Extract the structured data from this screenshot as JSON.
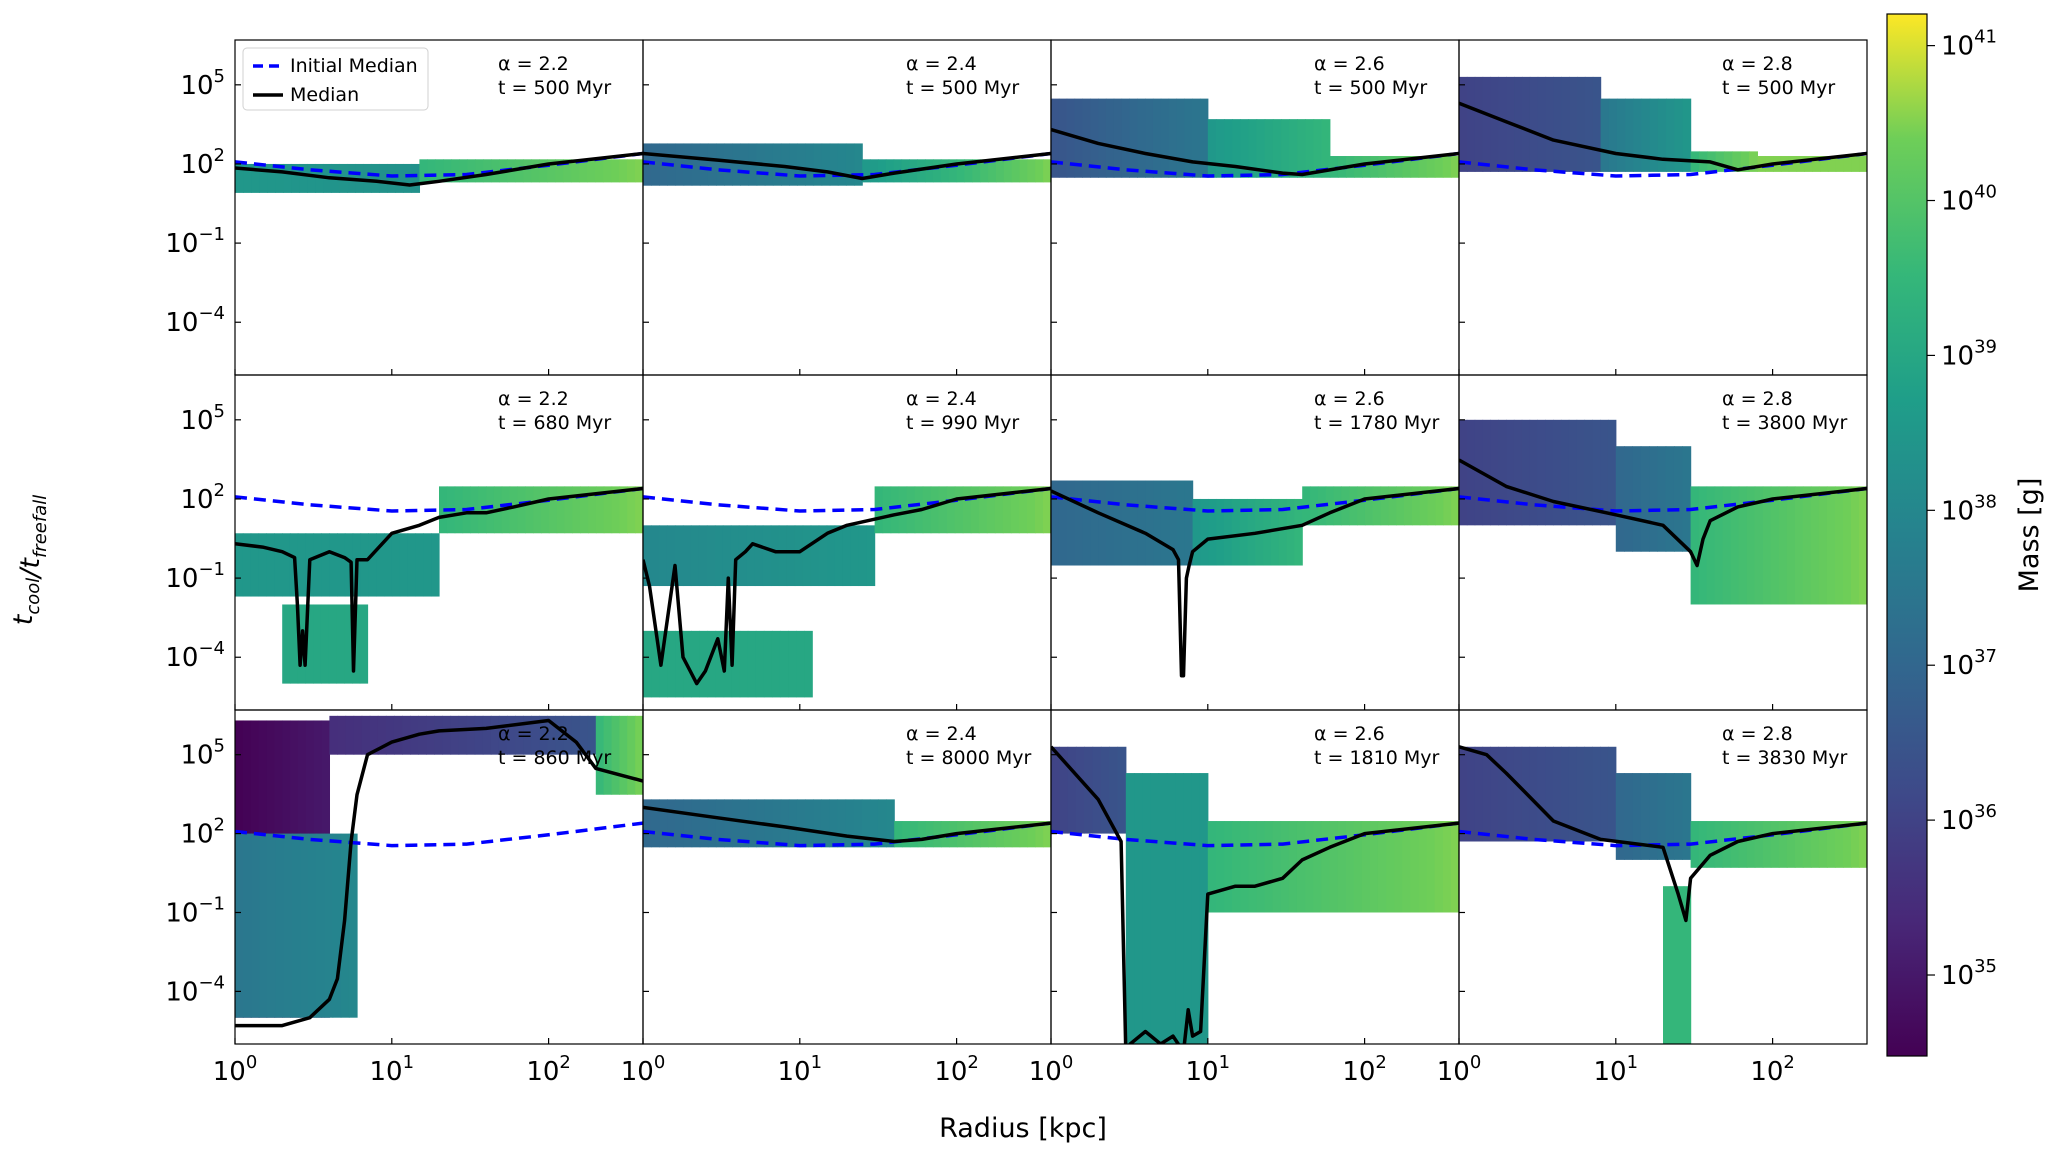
{
  "chart_data": {
    "type": "heatmap",
    "layout": {
      "rows": 3,
      "cols": 4
    },
    "xlabel": "Radius [kpc]",
    "ylabel": "t_cool/t_freefall",
    "xscale": "log",
    "yscale": "log",
    "xlim": [
      1,
      400
    ],
    "ylim": [
      1e-06,
      5000000
    ],
    "xticks": [
      1,
      10,
      100
    ],
    "xtick_labels": [
      "10^0",
      "10^1",
      "10^2"
    ],
    "xtick_labels_last_col": [
      "10^0",
      "10^1",
      "10^2"
    ],
    "yticks": [
      0.0001,
      0.1,
      100,
      100000
    ],
    "ytick_labels": [
      "10^−4",
      "10^−1",
      "10^2",
      "10^5"
    ],
    "legend": {
      "position": "top-left",
      "panel": 0,
      "entries": [
        {
          "label": "Initial Median",
          "color": "#0000ff",
          "style": "dashed"
        },
        {
          "label": "Median",
          "color": "#000000",
          "style": "solid"
        }
      ]
    },
    "colorbar": {
      "label": "Mass [g]",
      "scale": "log",
      "range": [
        3e+34,
        1.6e+41
      ],
      "ticks": [
        1e+35,
        1e+36,
        1e+37,
        1e+38,
        1e+39,
        1e+40,
        1e+41
      ],
      "tick_labels": [
        "10^35",
        "10^36",
        "10^37",
        "10^38",
        "10^39",
        "10^40",
        "10^41"
      ],
      "colormap": "viridis"
    },
    "initial_median": {
      "r": [
        1,
        3,
        10,
        30,
        100,
        400
      ],
      "y": [
        120,
        60,
        35,
        40,
        90,
        250
      ]
    },
    "panels": [
      {
        "alpha_text": "α = 2.2",
        "time_text": "t =  500 Myr",
        "label_pos": "top",
        "median": {
          "r": [
            1,
            2,
            4,
            8,
            13,
            20,
            40,
            100,
            400
          ],
          "y": [
            70,
            50,
            30,
            22,
            16,
            22,
            40,
            100,
            250
          ]
        },
        "mass": [
          {
            "r": [
              1,
              15
            ],
            "ylo": 8,
            "yhi": 100,
            "mlo": 3e+38,
            "mhi": 2e+38
          },
          {
            "r": [
              15,
              400
            ],
            "ylo": 20,
            "yhi": 150,
            "mlo": 3e+39,
            "mhi": 3e+40
          }
        ]
      },
      {
        "alpha_text": "α = 2.4",
        "time_text": "t =  500 Myr",
        "label_pos": "top",
        "median": {
          "r": [
            1,
            3,
            8,
            15,
            25,
            40,
            100,
            400
          ],
          "y": [
            250,
            140,
            80,
            50,
            28,
            45,
            100,
            250
          ]
        },
        "mass": [
          {
            "r": [
              1,
              25
            ],
            "ylo": 15,
            "yhi": 600,
            "mlo": 1e+37,
            "mhi": 1e+38
          },
          {
            "r": [
              25,
              400
            ],
            "ylo": 20,
            "yhi": 150,
            "mlo": 3e+38,
            "mhi": 3e+40
          }
        ]
      },
      {
        "alpha_text": "α = 2.6",
        "time_text": "t =  500 Myr",
        "label_pos": "top",
        "median": {
          "r": [
            1,
            2,
            4,
            8,
            15,
            30,
            40,
            100,
            400
          ],
          "y": [
            2000,
            600,
            250,
            120,
            80,
            45,
            40,
            100,
            250
          ]
        },
        "mass": [
          {
            "r": [
              1,
              10
            ],
            "ylo": 30,
            "yhi": 30000,
            "mlo": 3e+36,
            "mhi": 3e+37
          },
          {
            "r": [
              10,
              60
            ],
            "ylo": 30,
            "yhi": 5000,
            "mlo": 3e+38,
            "mhi": 3e+39
          },
          {
            "r": [
              60,
              400
            ],
            "ylo": 30,
            "yhi": 200,
            "mlo": 3e+39,
            "mhi": 3e+40
          }
        ]
      },
      {
        "alpha_text": "α = 2.8",
        "time_text": "t =  500 Myr",
        "label_pos": "top",
        "median": {
          "r": [
            1,
            2,
            4,
            10,
            20,
            40,
            60,
            100,
            400
          ],
          "y": [
            20000,
            4000,
            800,
            250,
            150,
            120,
            60,
            100,
            250
          ]
        },
        "mass": [
          {
            "r": [
              1,
              8
            ],
            "ylo": 50,
            "yhi": 200000,
            "mlo": 1e+36,
            "mhi": 3e+36
          },
          {
            "r": [
              8,
              30
            ],
            "ylo": 50,
            "yhi": 30000,
            "mlo": 3e+37,
            "mhi": 3e+38
          },
          {
            "r": [
              30,
              80
            ],
            "ylo": 50,
            "yhi": 300,
            "mlo": 3e+39,
            "mhi": 3e+40
          },
          {
            "r": [
              80,
              400
            ],
            "ylo": 50,
            "yhi": 200,
            "mlo": 3e+40,
            "mhi": 3e+40
          }
        ]
      },
      {
        "alpha_text": "α = 2.2",
        "time_text": "t =  680 Myr",
        "label_pos": "top",
        "median": {
          "r": [
            1,
            1.5,
            2,
            2.4,
            2.5,
            2.6,
            2.7,
            2.8,
            3,
            4,
            5,
            5.5,
            5.7,
            6,
            7,
            10,
            15,
            20,
            30,
            40,
            60,
            100,
            400
          ],
          "y": [
            2,
            1.5,
            1,
            0.6,
            0.01,
            5e-05,
            0.001,
            5e-05,
            0.5,
            1,
            0.6,
            0.4,
            3e-05,
            0.5,
            0.5,
            5,
            10,
            20,
            30,
            30,
            50,
            100,
            250
          ]
        },
        "mass": [
          {
            "r": [
              1,
              20
            ],
            "ylo": 0.02,
            "yhi": 5,
            "mlo": 3e+38,
            "mhi": 3e+38
          },
          {
            "r": [
              2,
              7
            ],
            "ylo": 1e-05,
            "yhi": 0.01,
            "mlo": 1e+39,
            "mhi": 1e+39
          },
          {
            "r": [
              20,
              400
            ],
            "ylo": 5,
            "yhi": 300,
            "mlo": 3e+39,
            "mhi": 3e+40
          }
        ]
      },
      {
        "alpha_text": "α = 2.4",
        "time_text": "t =  990 Myr",
        "label_pos": "top",
        "median": {
          "r": [
            1,
            1.1,
            1.3,
            1.6,
            1.8,
            2,
            2.2,
            2.5,
            3,
            3.3,
            3.5,
            3.7,
            3.9,
            4.5,
            5,
            7,
            10,
            15,
            20,
            40,
            60,
            100,
            400
          ],
          "y": [
            0.5,
            0.05,
            5e-05,
            0.3,
            0.0001,
            3e-05,
            1e-05,
            3e-05,
            0.0005,
            3e-05,
            0.1,
            5e-05,
            0.5,
            1,
            2,
            1,
            1,
            5,
            10,
            25,
            40,
            100,
            250
          ]
        },
        "mass": [
          {
            "r": [
              1,
              30
            ],
            "ylo": 0.05,
            "yhi": 10,
            "mlo": 1e+38,
            "mhi": 3e+38
          },
          {
            "r": [
              1,
              12
            ],
            "ylo": 3e-06,
            "yhi": 0.001,
            "mlo": 1e+39,
            "mhi": 1e+39
          },
          {
            "r": [
              30,
              400
            ],
            "ylo": 5,
            "yhi": 300,
            "mlo": 3e+39,
            "mhi": 3e+40
          }
        ]
      },
      {
        "alpha_text": "α = 2.6",
        "time_text": "t = 1780 Myr",
        "label_pos": "top",
        "median": {
          "r": [
            1,
            2,
            4,
            6,
            6.5,
            6.8,
            7,
            7.3,
            7.6,
            8,
            10,
            20,
            40,
            60,
            100,
            400
          ],
          "y": [
            200,
            30,
            5,
            1.2,
            0.5,
            2e-05,
            2e-05,
            0.1,
            0.3,
            1,
            3,
            5,
            10,
            30,
            100,
            250
          ]
        },
        "mass": [
          {
            "r": [
              1,
              8
            ],
            "ylo": 0.3,
            "yhi": 500,
            "mlo": 1e+37,
            "mhi": 3e+37
          },
          {
            "r": [
              8,
              40
            ],
            "ylo": 0.3,
            "yhi": 100,
            "mlo": 3e+38,
            "mhi": 3e+39
          },
          {
            "r": [
              40,
              400
            ],
            "ylo": 10,
            "yhi": 300,
            "mlo": 3e+39,
            "mhi": 3e+40
          }
        ]
      },
      {
        "alpha_text": "α = 2.8",
        "time_text": "t = 3800 Myr",
        "label_pos": "top",
        "median": {
          "r": [
            1,
            2,
            4,
            10,
            20,
            30,
            33,
            36,
            40,
            60,
            100,
            400
          ],
          "y": [
            3000,
            300,
            80,
            25,
            10,
            1,
            0.3,
            3,
            15,
            50,
            100,
            250
          ]
        },
        "mass": [
          {
            "r": [
              1,
              10
            ],
            "ylo": 10,
            "yhi": 100000,
            "mlo": 1e+36,
            "mhi": 3e+36
          },
          {
            "r": [
              10,
              30
            ],
            "ylo": 1,
            "yhi": 10000,
            "mlo": 1e+37,
            "mhi": 3e+37
          },
          {
            "r": [
              30,
              400
            ],
            "ylo": 0.01,
            "yhi": 300,
            "mlo": 3e+39,
            "mhi": 3e+40
          }
        ]
      },
      {
        "alpha_text": "α = 2.2",
        "time_text": "t =  860 Myr",
        "label_pos": "top",
        "median": {
          "r": [
            1,
            1.5,
            2,
            3,
            4,
            4.5,
            5,
            5.5,
            6,
            7,
            10,
            15,
            20,
            40,
            100,
            150,
            200,
            400
          ],
          "y": [
            5e-06,
            5e-06,
            5e-06,
            1e-05,
            5e-05,
            0.0003,
            0.05,
            50,
            3000,
            100000,
            300000,
            600000,
            800000,
            1000000,
            2000000,
            300000,
            30000,
            10000
          ]
        },
        "mass": [
          {
            "r": [
              1,
              4
            ],
            "ylo": 1e-05,
            "yhi": 2000000,
            "mlo": 3e+34,
            "mhi": 1e+35
          },
          {
            "r": [
              1,
              6
            ],
            "ylo": 1e-05,
            "yhi": 100,
            "mlo": 3e+37,
            "mhi": 1e+38
          },
          {
            "r": [
              4,
              200
            ],
            "ylo": 100000,
            "yhi": 3000000,
            "mlo": 3e+35,
            "mhi": 3e+36
          },
          {
            "r": [
              200,
              400
            ],
            "ylo": 3000,
            "yhi": 3000000,
            "mlo": 3e+39,
            "mhi": 3e+40
          }
        ]
      },
      {
        "alpha_text": "α = 2.4",
        "time_text": "t = 8000 Myr",
        "label_pos": "top",
        "median": {
          "r": [
            1,
            3,
            8,
            20,
            40,
            60,
            100,
            400
          ],
          "y": [
            1000,
            400,
            180,
            80,
            50,
            60,
            100,
            250
          ]
        },
        "mass": [
          {
            "r": [
              1,
              40
            ],
            "ylo": 30,
            "yhi": 2000,
            "mlo": 1e+37,
            "mhi": 1e+38
          },
          {
            "r": [
              40,
              400
            ],
            "ylo": 30,
            "yhi": 300,
            "mlo": 3e+39,
            "mhi": 3e+40
          }
        ]
      },
      {
        "alpha_text": "α = 2.6",
        "time_text": "t = 1810 Myr",
        "label_pos": "top",
        "median": {
          "r": [
            1,
            2,
            2.8,
            3,
            3.2,
            4,
            5,
            6,
            7,
            7.5,
            8,
            9,
            10,
            15,
            20,
            30,
            40,
            60,
            100,
            400
          ],
          "y": [
            200000,
            2000,
            50,
            5e-07,
            1e-06,
            3e-06,
            1e-06,
            2e-06,
            5e-07,
            2e-05,
            2e-06,
            3e-06,
            0.5,
            1,
            1,
            2,
            10,
            30,
            100,
            250
          ]
        },
        "mass": [
          {
            "r": [
              1,
              3
            ],
            "ylo": 100,
            "yhi": 200000,
            "mlo": 1e+36,
            "mhi": 3e+36
          },
          {
            "r": [
              3,
              10
            ],
            "ylo": 1e-06,
            "yhi": 20000,
            "mlo": 3e+38,
            "mhi": 3e+38
          },
          {
            "r": [
              10,
              400
            ],
            "ylo": 0.1,
            "yhi": 300,
            "mlo": 3e+39,
            "mhi": 3e+40
          }
        ]
      },
      {
        "alpha_text": "α = 2.8",
        "time_text": "t = 3830 Myr",
        "label_pos": "top",
        "median": {
          "r": [
            1,
            1.5,
            2,
            4,
            8,
            20,
            25,
            28,
            30,
            40,
            60,
            100,
            400
          ],
          "y": [
            200000,
            100000,
            20000,
            300,
            60,
            30,
            0.5,
            0.05,
            2,
            15,
            50,
            100,
            250
          ]
        },
        "mass": [
          {
            "r": [
              1,
              10
            ],
            "ylo": 50,
            "yhi": 200000,
            "mlo": 1e+36,
            "mhi": 3e+36
          },
          {
            "r": [
              10,
              30
            ],
            "ylo": 10,
            "yhi": 20000,
            "mlo": 1e+37,
            "mhi": 3e+37
          },
          {
            "r": [
              20,
              30
            ],
            "ylo": 1e-06,
            "yhi": 1,
            "mlo": 3e+39,
            "mhi": 3e+39
          },
          {
            "r": [
              30,
              400
            ],
            "ylo": 5,
            "yhi": 300,
            "mlo": 3e+39,
            "mhi": 3e+40
          }
        ]
      }
    ]
  }
}
